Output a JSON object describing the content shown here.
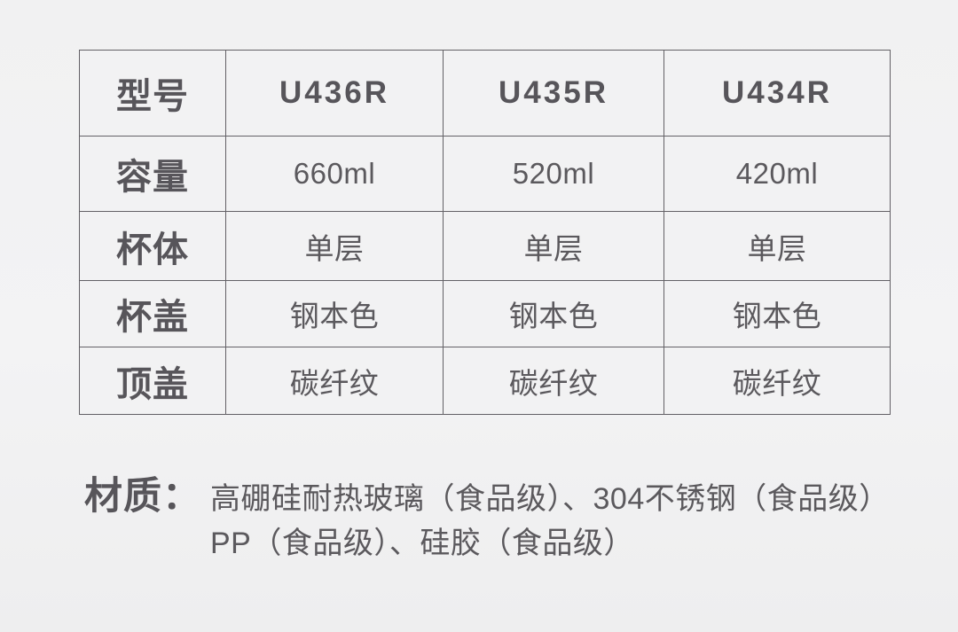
{
  "colors": {
    "page_background_top": "#f1f1f2",
    "page_background_bottom": "#eeeeef",
    "cell_background": "#f2f2f3",
    "table_border": "#636166",
    "text": "#57555a"
  },
  "table": {
    "rows": [
      {
        "label": "型号",
        "values": [
          "U436R",
          "U435R",
          "U434R"
        ]
      },
      {
        "label": "容量",
        "values": [
          "660ml",
          "520ml",
          "420ml"
        ]
      },
      {
        "label": "杯体",
        "values": [
          "单层",
          "单层",
          "单层"
        ]
      },
      {
        "label": "杯盖",
        "values": [
          "钢本色",
          "钢本色",
          "钢本色"
        ]
      },
      {
        "label": "顶盖",
        "values": [
          "碳纤纹",
          "碳纤纹",
          "碳纤纹"
        ]
      }
    ]
  },
  "materials": {
    "label": "材质：",
    "lines": [
      "高硼硅耐热玻璃（食品级）、304不锈钢（食品级）",
      "PP（食品级）、硅胶（食品级）"
    ]
  }
}
